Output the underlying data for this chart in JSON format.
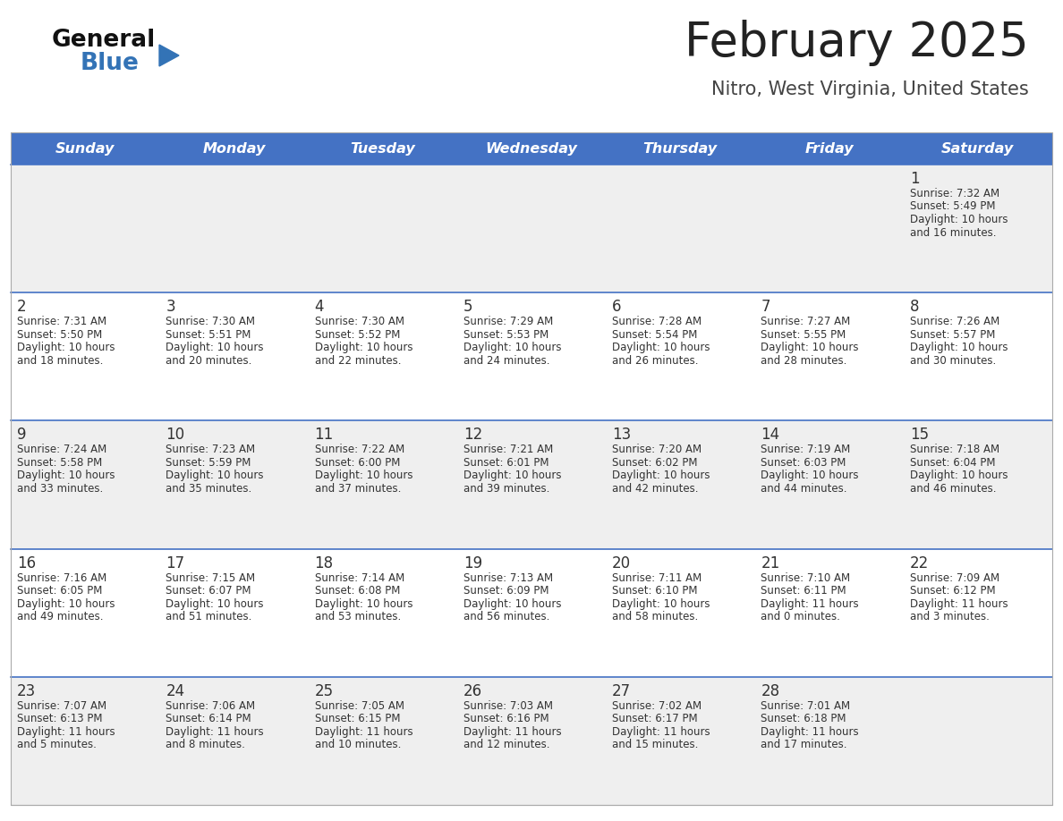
{
  "title": "February 2025",
  "subtitle": "Nitro, West Virginia, United States",
  "header_bg": "#4472C4",
  "header_text_color": "#FFFFFF",
  "day_names": [
    "Sunday",
    "Monday",
    "Tuesday",
    "Wednesday",
    "Thursday",
    "Friday",
    "Saturday"
  ],
  "row_bg_odd": "#EFEFEF",
  "row_bg_even": "#FFFFFF",
  "separator_color": "#4472C4",
  "title_color": "#222222",
  "subtitle_color": "#444444",
  "day_number_color": "#333333",
  "cell_text_color": "#333333",
  "calendar": [
    [
      null,
      null,
      null,
      null,
      null,
      null,
      {
        "day": 1,
        "sunrise": "7:32 AM",
        "sunset": "5:49 PM",
        "daylight": "10 hours and 16 minutes."
      }
    ],
    [
      {
        "day": 2,
        "sunrise": "7:31 AM",
        "sunset": "5:50 PM",
        "daylight": "10 hours and 18 minutes."
      },
      {
        "day": 3,
        "sunrise": "7:30 AM",
        "sunset": "5:51 PM",
        "daylight": "10 hours and 20 minutes."
      },
      {
        "day": 4,
        "sunrise": "7:30 AM",
        "sunset": "5:52 PM",
        "daylight": "10 hours and 22 minutes."
      },
      {
        "day": 5,
        "sunrise": "7:29 AM",
        "sunset": "5:53 PM",
        "daylight": "10 hours and 24 minutes."
      },
      {
        "day": 6,
        "sunrise": "7:28 AM",
        "sunset": "5:54 PM",
        "daylight": "10 hours and 26 minutes."
      },
      {
        "day": 7,
        "sunrise": "7:27 AM",
        "sunset": "5:55 PM",
        "daylight": "10 hours and 28 minutes."
      },
      {
        "day": 8,
        "sunrise": "7:26 AM",
        "sunset": "5:57 PM",
        "daylight": "10 hours and 30 minutes."
      }
    ],
    [
      {
        "day": 9,
        "sunrise": "7:24 AM",
        "sunset": "5:58 PM",
        "daylight": "10 hours and 33 minutes."
      },
      {
        "day": 10,
        "sunrise": "7:23 AM",
        "sunset": "5:59 PM",
        "daylight": "10 hours and 35 minutes."
      },
      {
        "day": 11,
        "sunrise": "7:22 AM",
        "sunset": "6:00 PM",
        "daylight": "10 hours and 37 minutes."
      },
      {
        "day": 12,
        "sunrise": "7:21 AM",
        "sunset": "6:01 PM",
        "daylight": "10 hours and 39 minutes."
      },
      {
        "day": 13,
        "sunrise": "7:20 AM",
        "sunset": "6:02 PM",
        "daylight": "10 hours and 42 minutes."
      },
      {
        "day": 14,
        "sunrise": "7:19 AM",
        "sunset": "6:03 PM",
        "daylight": "10 hours and 44 minutes."
      },
      {
        "day": 15,
        "sunrise": "7:18 AM",
        "sunset": "6:04 PM",
        "daylight": "10 hours and 46 minutes."
      }
    ],
    [
      {
        "day": 16,
        "sunrise": "7:16 AM",
        "sunset": "6:05 PM",
        "daylight": "10 hours and 49 minutes."
      },
      {
        "day": 17,
        "sunrise": "7:15 AM",
        "sunset": "6:07 PM",
        "daylight": "10 hours and 51 minutes."
      },
      {
        "day": 18,
        "sunrise": "7:14 AM",
        "sunset": "6:08 PM",
        "daylight": "10 hours and 53 minutes."
      },
      {
        "day": 19,
        "sunrise": "7:13 AM",
        "sunset": "6:09 PM",
        "daylight": "10 hours and 56 minutes."
      },
      {
        "day": 20,
        "sunrise": "7:11 AM",
        "sunset": "6:10 PM",
        "daylight": "10 hours and 58 minutes."
      },
      {
        "day": 21,
        "sunrise": "7:10 AM",
        "sunset": "6:11 PM",
        "daylight": "11 hours and 0 minutes."
      },
      {
        "day": 22,
        "sunrise": "7:09 AM",
        "sunset": "6:12 PM",
        "daylight": "11 hours and 3 minutes."
      }
    ],
    [
      {
        "day": 23,
        "sunrise": "7:07 AM",
        "sunset": "6:13 PM",
        "daylight": "11 hours and 5 minutes."
      },
      {
        "day": 24,
        "sunrise": "7:06 AM",
        "sunset": "6:14 PM",
        "daylight": "11 hours and 8 minutes."
      },
      {
        "day": 25,
        "sunrise": "7:05 AM",
        "sunset": "6:15 PM",
        "daylight": "11 hours and 10 minutes."
      },
      {
        "day": 26,
        "sunrise": "7:03 AM",
        "sunset": "6:16 PM",
        "daylight": "11 hours and 12 minutes."
      },
      {
        "day": 27,
        "sunrise": "7:02 AM",
        "sunset": "6:17 PM",
        "daylight": "11 hours and 15 minutes."
      },
      {
        "day": 28,
        "sunrise": "7:01 AM",
        "sunset": "6:18 PM",
        "daylight": "11 hours and 17 minutes."
      },
      null
    ]
  ],
  "logo_text1": "General",
  "logo_text2": "Blue",
  "logo_triangle_color": "#3373B6",
  "fig_width": 11.88,
  "fig_height": 9.18,
  "dpi": 100
}
